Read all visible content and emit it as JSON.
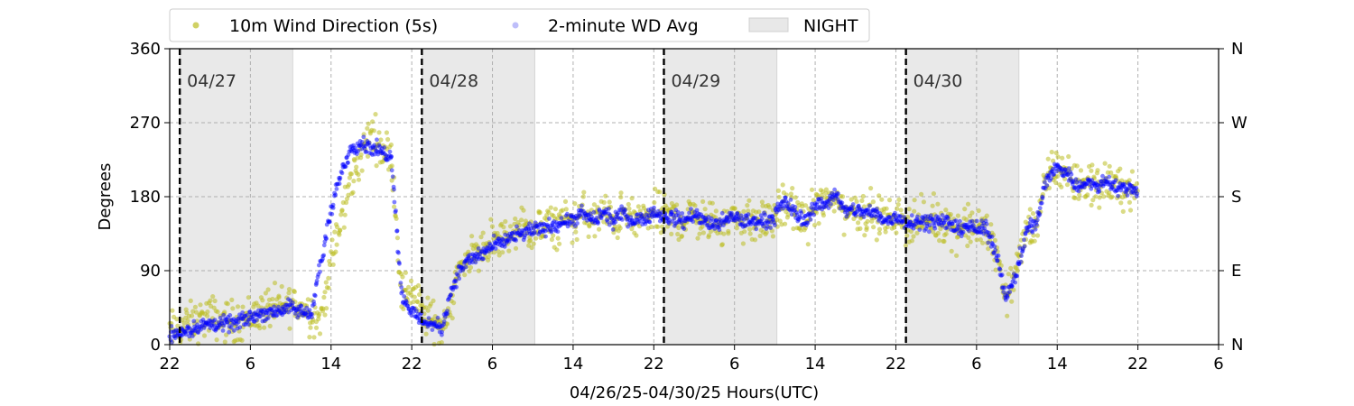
{
  "chart_data": {
    "type": "scatter",
    "xlabel": "04/26/25-04/30/25  Hours(UTC)",
    "ylabel": "Degrees",
    "x_range_hours": [
      0,
      104
    ],
    "ylim": [
      0,
      360
    ],
    "grid": true,
    "legend_placement": "top-left, above plot",
    "x_ticks": [
      {
        "hour": 0,
        "label": "22"
      },
      {
        "hour": 8,
        "label": "6"
      },
      {
        "hour": 16,
        "label": "14"
      },
      {
        "hour": 24,
        "label": "22"
      },
      {
        "hour": 32,
        "label": "6"
      },
      {
        "hour": 40,
        "label": "14"
      },
      {
        "hour": 48,
        "label": "22"
      },
      {
        "hour": 56,
        "label": "6"
      },
      {
        "hour": 64,
        "label": "14"
      },
      {
        "hour": 72,
        "label": "22"
      },
      {
        "hour": 80,
        "label": "6"
      },
      {
        "hour": 88,
        "label": "14"
      },
      {
        "hour": 96,
        "label": "22"
      },
      {
        "hour": 104,
        "label": "6"
      }
    ],
    "y_ticks_left": [
      {
        "value": 0,
        "label": "0"
      },
      {
        "value": 90,
        "label": "90"
      },
      {
        "value": 180,
        "label": "180"
      },
      {
        "value": 270,
        "label": "270"
      },
      {
        "value": 360,
        "label": "360"
      }
    ],
    "y_ticks_right": [
      {
        "value": 0,
        "label": "N"
      },
      {
        "value": 90,
        "label": "E"
      },
      {
        "value": 180,
        "label": "S"
      },
      {
        "value": 270,
        "label": "W"
      },
      {
        "value": 360,
        "label": "N"
      }
    ],
    "midnights": [
      {
        "hour": 1,
        "label": "04/27"
      },
      {
        "hour": 25,
        "label": "04/28"
      },
      {
        "hour": 49,
        "label": "04/29"
      },
      {
        "hour": 73,
        "label": "04/30"
      }
    ],
    "night_periods": [
      [
        1,
        12.2
      ],
      [
        25,
        36.2
      ],
      [
        49,
        60.2
      ],
      [
        73,
        84.2
      ]
    ],
    "series": [
      {
        "name": "10m Wind Direction (5s)",
        "color": "#bcbd22",
        "marker": "circle",
        "spread_deg": 25,
        "points": [
          [
            0,
            15
          ],
          [
            1,
            20
          ],
          [
            2,
            25
          ],
          [
            3,
            30
          ],
          [
            4,
            35
          ],
          [
            5,
            30
          ],
          [
            6,
            28
          ],
          [
            7,
            30
          ],
          [
            8,
            35
          ],
          [
            9,
            40
          ],
          [
            10,
            45
          ],
          [
            11,
            45
          ],
          [
            12,
            50
          ],
          [
            13,
            45
          ],
          [
            14,
            40
          ],
          [
            15,
            30
          ],
          [
            16,
            100
          ],
          [
            17,
            150
          ],
          [
            18,
            200
          ],
          [
            19,
            230
          ],
          [
            20,
            260
          ],
          [
            21,
            240
          ],
          [
            22,
            230
          ],
          [
            23,
            60
          ],
          [
            24,
            70
          ],
          [
            25,
            40
          ],
          [
            26,
            30
          ],
          [
            27,
            20
          ],
          [
            28,
            60
          ],
          [
            29,
            100
          ],
          [
            30,
            110
          ],
          [
            31,
            115
          ],
          [
            32,
            125
          ],
          [
            33,
            130
          ],
          [
            34,
            135
          ],
          [
            35,
            140
          ],
          [
            36,
            140
          ],
          [
            37,
            140
          ],
          [
            38,
            145
          ],
          [
            39,
            150
          ],
          [
            40,
            150
          ],
          [
            41,
            160
          ],
          [
            42,
            150
          ],
          [
            43,
            160
          ],
          [
            44,
            150
          ],
          [
            45,
            160
          ],
          [
            46,
            150
          ],
          [
            47,
            155
          ],
          [
            48,
            160
          ],
          [
            49,
            155
          ],
          [
            50,
            155
          ],
          [
            51,
            150
          ],
          [
            52,
            160
          ],
          [
            53,
            150
          ],
          [
            54,
            145
          ],
          [
            55,
            150
          ],
          [
            56,
            155
          ],
          [
            57,
            150
          ],
          [
            58,
            150
          ],
          [
            59,
            150
          ],
          [
            60,
            155
          ],
          [
            61,
            170
          ],
          [
            62,
            160
          ],
          [
            63,
            150
          ],
          [
            64,
            170
          ],
          [
            65,
            170
          ],
          [
            66,
            180
          ],
          [
            67,
            160
          ],
          [
            68,
            165
          ],
          [
            69,
            160
          ],
          [
            70,
            160
          ],
          [
            71,
            150
          ],
          [
            72,
            155
          ],
          [
            73,
            150
          ],
          [
            74,
            150
          ],
          [
            75,
            150
          ],
          [
            76,
            150
          ],
          [
            77,
            150
          ],
          [
            78,
            140
          ],
          [
            79,
            145
          ],
          [
            80,
            140
          ],
          [
            81,
            140
          ],
          [
            82,
            110
          ],
          [
            83,
            60
          ],
          [
            84,
            90
          ],
          [
            85,
            140
          ],
          [
            86,
            150
          ],
          [
            87,
            200
          ],
          [
            88,
            215
          ],
          [
            89,
            210
          ],
          [
            90,
            190
          ],
          [
            91,
            200
          ],
          [
            92,
            190
          ],
          [
            93,
            200
          ],
          [
            94,
            190
          ],
          [
            95,
            190
          ],
          [
            96,
            190
          ]
        ]
      },
      {
        "name": "2-minute WD Avg",
        "color": "#0000ff",
        "marker": "circle",
        "spread_deg": 9,
        "points": [
          [
            0,
            12
          ],
          [
            1,
            15
          ],
          [
            2,
            18
          ],
          [
            3,
            22
          ],
          [
            4,
            25
          ],
          [
            5,
            25
          ],
          [
            6,
            25
          ],
          [
            7,
            28
          ],
          [
            8,
            33
          ],
          [
            9,
            38
          ],
          [
            10,
            40
          ],
          [
            11,
            42
          ],
          [
            12,
            45
          ],
          [
            13,
            40
          ],
          [
            14,
            38
          ],
          [
            15,
            100
          ],
          [
            16,
            160
          ],
          [
            17,
            210
          ],
          [
            18,
            240
          ],
          [
            19,
            245
          ],
          [
            20,
            240
          ],
          [
            21,
            235
          ],
          [
            22,
            230
          ],
          [
            23,
            60
          ],
          [
            24,
            40
          ],
          [
            25,
            30
          ],
          [
            26,
            25
          ],
          [
            27,
            20
          ],
          [
            28,
            70
          ],
          [
            29,
            95
          ],
          [
            30,
            105
          ],
          [
            31,
            110
          ],
          [
            32,
            120
          ],
          [
            33,
            125
          ],
          [
            34,
            130
          ],
          [
            35,
            135
          ],
          [
            36,
            140
          ],
          [
            37,
            140
          ],
          [
            38,
            145
          ],
          [
            39,
            150
          ],
          [
            40,
            150
          ],
          [
            41,
            160
          ],
          [
            42,
            150
          ],
          [
            43,
            160
          ],
          [
            44,
            150
          ],
          [
            45,
            160
          ],
          [
            46,
            150
          ],
          [
            47,
            155
          ],
          [
            48,
            160
          ],
          [
            49,
            155
          ],
          [
            50,
            155
          ],
          [
            51,
            150
          ],
          [
            52,
            160
          ],
          [
            53,
            150
          ],
          [
            54,
            145
          ],
          [
            55,
            150
          ],
          [
            56,
            155
          ],
          [
            57,
            150
          ],
          [
            58,
            150
          ],
          [
            59,
            150
          ],
          [
            60,
            155
          ],
          [
            61,
            175
          ],
          [
            62,
            160
          ],
          [
            63,
            150
          ],
          [
            64,
            170
          ],
          [
            65,
            170
          ],
          [
            66,
            185
          ],
          [
            67,
            160
          ],
          [
            68,
            165
          ],
          [
            69,
            160
          ],
          [
            70,
            160
          ],
          [
            71,
            150
          ],
          [
            72,
            155
          ],
          [
            73,
            150
          ],
          [
            74,
            150
          ],
          [
            75,
            150
          ],
          [
            76,
            150
          ],
          [
            77,
            150
          ],
          [
            78,
            140
          ],
          [
            79,
            145
          ],
          [
            80,
            140
          ],
          [
            81,
            140
          ],
          [
            82,
            110
          ],
          [
            83,
            55
          ],
          [
            84,
            90
          ],
          [
            85,
            140
          ],
          [
            86,
            150
          ],
          [
            87,
            205
          ],
          [
            88,
            215
          ],
          [
            89,
            210
          ],
          [
            90,
            190
          ],
          [
            91,
            200
          ],
          [
            92,
            190
          ],
          [
            93,
            200
          ],
          [
            94,
            190
          ],
          [
            95,
            190
          ],
          [
            96,
            190
          ]
        ]
      }
    ],
    "legend": [
      {
        "label": "10m Wind Direction (5s)",
        "symbol": "dot",
        "color": "#bcbd22"
      },
      {
        "label": "2-minute WD Avg",
        "symbol": "dot",
        "color": "#6f6ff5"
      },
      {
        "label": "NIGHT",
        "symbol": "patch",
        "color": "#e8e8e8"
      }
    ]
  }
}
